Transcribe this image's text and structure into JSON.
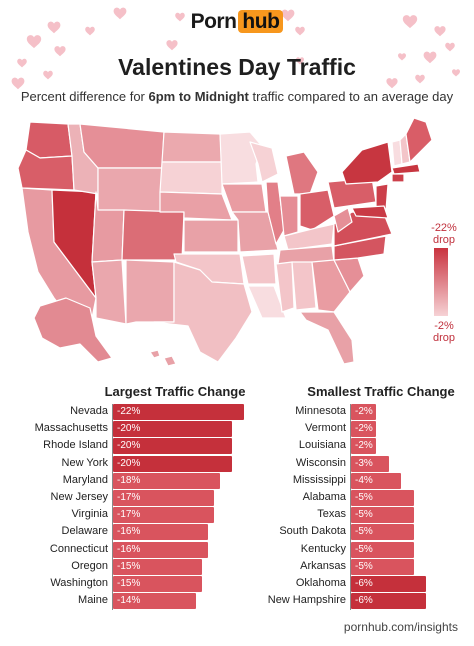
{
  "logo": {
    "part1": "Porn",
    "part2": "hub"
  },
  "title": "Valentines Day Traffic",
  "subtitle": {
    "pre": "Percent difference for ",
    "bold": "6pm to Midnight",
    "post": " traffic compared to an average day"
  },
  "legend": {
    "top_value": "-22%",
    "top_word": "drop",
    "bottom_value": "-2%",
    "bottom_word": "drop"
  },
  "colors": {
    "accent": "#d0404a",
    "bar": "#d9545e",
    "bar_dark": "#c5303b",
    "logo_orange": "#f7971d",
    "heart": "#f5c0c8"
  },
  "chart_data": [
    {
      "type": "bar",
      "title": "Largest Traffic Change",
      "orientation": "horizontal",
      "categories": [
        "Nevada",
        "Massachusetts",
        "Rhode Island",
        "New York",
        "Maryland",
        "New Jersey",
        "Virginia",
        "Delaware",
        "Connecticut",
        "Oregon",
        "Washington",
        "Maine"
      ],
      "values": [
        -22,
        -20,
        -20,
        -20,
        -18,
        -17,
        -17,
        -16,
        -16,
        -15,
        -15,
        -14
      ],
      "labels": [
        "-22%",
        "-20%",
        "-20%",
        "-20%",
        "-18%",
        "-17%",
        "-17%",
        "-16%",
        "-16%",
        "-15%",
        "-15%",
        "-14%"
      ]
    },
    {
      "type": "bar",
      "title": "Smallest Traffic Change",
      "orientation": "horizontal",
      "categories": [
        "Minnesota",
        "Vermont",
        "Louisiana",
        "Wisconsin",
        "Mississippi",
        "Alabama",
        "Texas",
        "South Dakota",
        "Kentucky",
        "Arkansas",
        "Oklahoma",
        "New Hampshire"
      ],
      "values": [
        -2,
        -2,
        -2,
        -3,
        -4,
        -5,
        -5,
        -5,
        -5,
        -5,
        -6,
        -6
      ],
      "labels": [
        "-2%",
        "-2%",
        "-2%",
        "-3%",
        "-4%",
        "-5%",
        "-5%",
        "-5%",
        "-5%",
        "-5%",
        "-6%",
        "-6%"
      ]
    }
  ],
  "footer": "pornhub.com/insights"
}
